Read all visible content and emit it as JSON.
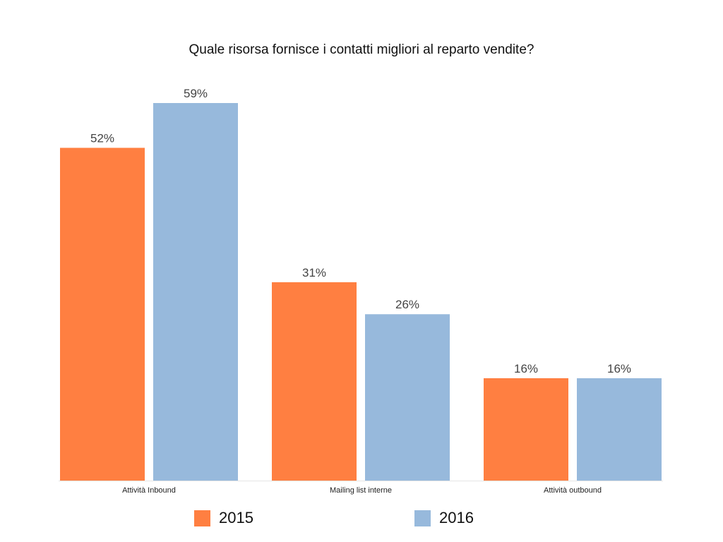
{
  "chart_data": {
    "type": "bar",
    "title": "Quale risorsa fornisce i contatti migliori al reparto vendite?",
    "xlabel": "",
    "ylabel": "",
    "categories": [
      "Attività Inbound",
      "Mailing list interne",
      "Attività outbound"
    ],
    "series": [
      {
        "name": "2015",
        "values": [
          52,
          31,
          16
        ],
        "color": "#FF7F41"
      },
      {
        "name": "2016",
        "values": [
          59,
          26,
          16
        ],
        "color": "#97B9DC"
      }
    ],
    "value_suffix": "%",
    "ylim": [
      0,
      60
    ],
    "grid": false,
    "legend_position": "bottom"
  }
}
